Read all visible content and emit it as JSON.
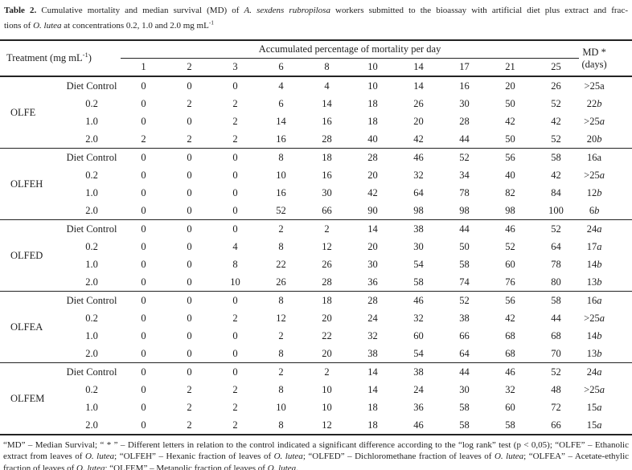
{
  "colors": {
    "background": "#ffffff",
    "text": "#1e1e1e",
    "rule": "#232323"
  },
  "title": {
    "lines": [
      [
        {
          "t": "Table 2.",
          "b": true
        },
        {
          "t": " Cumulative mortality and median survival (MD) of "
        },
        {
          "t": "A. sexdens rubropilosa",
          "i": true
        },
        {
          "t": " workers submitted to the bioassay with artificial diet plus extract and frac-"
        }
      ],
      [
        {
          "t": "tions of "
        },
        {
          "t": "O. lutea",
          "i": true
        },
        {
          "t": " at concentrations 0.2, 1.0 and 2.0 mg mL"
        },
        {
          "t": "-1",
          "sup": true
        }
      ]
    ]
  },
  "table": {
    "header": {
      "treatment_label": [
        {
          "t": "Treatment (mg mL"
        },
        {
          "t": "-1",
          "sup": true
        },
        {
          "t": ")"
        }
      ],
      "span_label": "Accumulated percentage of mortality per day",
      "days": [
        "1",
        "2",
        "3",
        "6",
        "8",
        "10",
        "14",
        "17",
        "21",
        "25"
      ],
      "md_label_line1": "MD *",
      "md_label_line2": "(days)"
    },
    "groups": [
      {
        "name": "OLFE",
        "rows": [
          {
            "treatment": "Diet Control",
            "values": [
              "0",
              "0",
              "0",
              "4",
              "4",
              "10",
              "14",
              "16",
              "20",
              "26"
            ],
            "md": ">25",
            "md_letter": "a",
            "md_letter_italic": false
          },
          {
            "treatment": "0.2",
            "values": [
              "0",
              "2",
              "2",
              "6",
              "14",
              "18",
              "26",
              "30",
              "50",
              "52"
            ],
            "md": "22",
            "md_letter": "b",
            "md_letter_italic": true
          },
          {
            "treatment": "1.0",
            "values": [
              "0",
              "0",
              "2",
              "14",
              "16",
              "18",
              "20",
              "28",
              "42",
              "42"
            ],
            "md": ">25",
            "md_letter": "a",
            "md_letter_italic": true
          },
          {
            "treatment": "2.0",
            "values": [
              "2",
              "2",
              "2",
              "16",
              "28",
              "40",
              "42",
              "44",
              "50",
              "52"
            ],
            "md": "20",
            "md_letter": "b",
            "md_letter_italic": true
          }
        ]
      },
      {
        "name": "OLFEH",
        "rows": [
          {
            "treatment": "Diet Control",
            "values": [
              "0",
              "0",
              "0",
              "8",
              "18",
              "28",
              "46",
              "52",
              "56",
              "58"
            ],
            "md": "16",
            "md_letter": "a",
            "md_letter_italic": false
          },
          {
            "treatment": "0.2",
            "values": [
              "0",
              "0",
              "0",
              "10",
              "16",
              "20",
              "32",
              "34",
              "40",
              "42"
            ],
            "md": ">25",
            "md_letter": "a",
            "md_letter_italic": true
          },
          {
            "treatment": "1.0",
            "values": [
              "0",
              "0",
              "0",
              "16",
              "30",
              "42",
              "64",
              "78",
              "82",
              "84"
            ],
            "md": "12",
            "md_letter": "b",
            "md_letter_italic": true
          },
          {
            "treatment": "2.0",
            "values": [
              "0",
              "0",
              "0",
              "52",
              "66",
              "90",
              "98",
              "98",
              "98",
              "100"
            ],
            "md": "6",
            "md_letter": "b",
            "md_letter_italic": true
          }
        ]
      },
      {
        "name": "OLFED",
        "rows": [
          {
            "treatment": "Diet Control",
            "values": [
              "0",
              "0",
              "0",
              "2",
              "2",
              "14",
              "38",
              "44",
              "46",
              "52"
            ],
            "md": "24",
            "md_letter": "a",
            "md_letter_italic": true
          },
          {
            "treatment": "0.2",
            "values": [
              "0",
              "0",
              "4",
              "8",
              "12",
              "20",
              "30",
              "50",
              "52",
              "64"
            ],
            "md": "17",
            "md_letter": "a",
            "md_letter_italic": true
          },
          {
            "treatment": "1.0",
            "values": [
              "0",
              "0",
              "8",
              "22",
              "26",
              "30",
              "54",
              "58",
              "60",
              "78"
            ],
            "md": "14",
            "md_letter": "b",
            "md_letter_italic": true
          },
          {
            "treatment": "2.0",
            "values": [
              "0",
              "0",
              "10",
              "26",
              "28",
              "36",
              "58",
              "74",
              "76",
              "80"
            ],
            "md": "13",
            "md_letter": "b",
            "md_letter_italic": true
          }
        ]
      },
      {
        "name": "OLFEA",
        "rows": [
          {
            "treatment": "Diet Control",
            "values": [
              "0",
              "0",
              "0",
              "8",
              "18",
              "28",
              "46",
              "52",
              "56",
              "58"
            ],
            "md": "16",
            "md_letter": "a",
            "md_letter_italic": true
          },
          {
            "treatment": "0.2",
            "values": [
              "0",
              "0",
              "2",
              "12",
              "20",
              "24",
              "32",
              "38",
              "42",
              "44"
            ],
            "md": ">25",
            "md_letter": "a",
            "md_letter_italic": true
          },
          {
            "treatment": "1.0",
            "values": [
              "0",
              "0",
              "0",
              "2",
              "22",
              "32",
              "60",
              "66",
              "68",
              "68"
            ],
            "md": "14",
            "md_letter": "b",
            "md_letter_italic": true
          },
          {
            "treatment": "2.0",
            "values": [
              "0",
              "0",
              "0",
              "8",
              "20",
              "38",
              "54",
              "64",
              "68",
              "70"
            ],
            "md": "13",
            "md_letter": "b",
            "md_letter_italic": true
          }
        ]
      },
      {
        "name": "OLFEM",
        "rows": [
          {
            "treatment": "Diet Control",
            "values": [
              "0",
              "0",
              "0",
              "2",
              "2",
              "14",
              "38",
              "44",
              "46",
              "52"
            ],
            "md": "24",
            "md_letter": "a",
            "md_letter_italic": true
          },
          {
            "treatment": "0.2",
            "values": [
              "0",
              "2",
              "2",
              "8",
              "10",
              "14",
              "24",
              "30",
              "32",
              "48"
            ],
            "md": ">25",
            "md_letter": "a",
            "md_letter_italic": true
          },
          {
            "treatment": "1.0",
            "values": [
              "0",
              "2",
              "2",
              "10",
              "10",
              "18",
              "36",
              "58",
              "60",
              "72"
            ],
            "md": "15",
            "md_letter": "a",
            "md_letter_italic": true
          },
          {
            "treatment": "2.0",
            "values": [
              "0",
              "2",
              "2",
              "8",
              "12",
              "18",
              "46",
              "58",
              "58",
              "66"
            ],
            "md": "15",
            "md_letter": "a",
            "md_letter_italic": true
          }
        ]
      }
    ]
  },
  "footnote": {
    "segments": [
      {
        "t": "“MD” – Median Survival; “ * ” – Different letters in relation to the control indicated a significant difference according to the “log rank” test (p < 0,05); “OLFE” – Ethanolic extract from leaves of "
      },
      {
        "t": "O. lutea",
        "i": true
      },
      {
        "t": "; “OLFEH” – Hexanic fraction of leaves of "
      },
      {
        "t": "O. lutea",
        "i": true
      },
      {
        "t": "; “OLFED” – Dichloromethane fraction of leaves of "
      },
      {
        "t": "O. lutea",
        "i": true
      },
      {
        "t": "; “OLFEA” – Acetate-ethylic fraction of leaves of "
      },
      {
        "t": "O. lutea",
        "i": true
      },
      {
        "t": "; “OLFEM” – Metanolic fraction of leaves of "
      },
      {
        "t": "O. lutea",
        "i": true
      },
      {
        "t": "."
      }
    ]
  }
}
